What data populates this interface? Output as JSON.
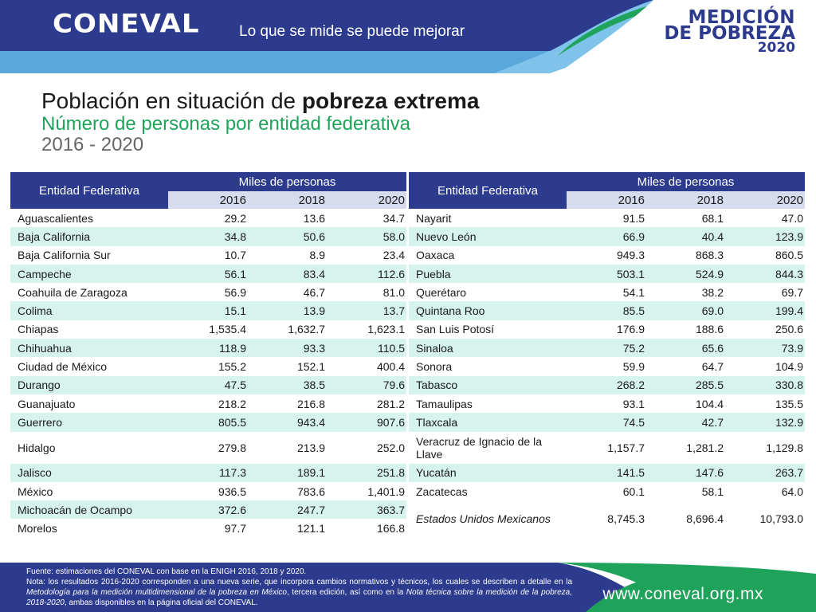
{
  "header": {
    "logo": "CONEVAL",
    "slogan": "Lo que se mide se puede mejorar",
    "badge": {
      "line1": "MEDICIÓN",
      "line2": "DE POBREZA",
      "line3": "2020"
    }
  },
  "title": {
    "prefix": "Población en situación de ",
    "bold": "pobreza extrema",
    "subtitle": "Número de personas por entidad federativa",
    "years": "2016 - 2020"
  },
  "table": {
    "entity_header": "Entidad Federativa",
    "group_header": "Miles de personas",
    "years": [
      "2016",
      "2018",
      "2020"
    ],
    "left_rows": [
      {
        "name": "Aguascalientes",
        "v2016": "29.2",
        "v2018": "13.6",
        "v2020": "34.7"
      },
      {
        "name": "Baja California",
        "v2016": "34.8",
        "v2018": "50.6",
        "v2020": "58.0"
      },
      {
        "name": "Baja California Sur",
        "v2016": "10.7",
        "v2018": "8.9",
        "v2020": "23.4"
      },
      {
        "name": "Campeche",
        "v2016": "56.1",
        "v2018": "83.4",
        "v2020": "112.6"
      },
      {
        "name": "Coahuila de Zaragoza",
        "v2016": "56.9",
        "v2018": "46.7",
        "v2020": "81.0"
      },
      {
        "name": "Colima",
        "v2016": "15.1",
        "v2018": "13.9",
        "v2020": "13.7"
      },
      {
        "name": "Chiapas",
        "v2016": "1,535.4",
        "v2018": "1,632.7",
        "v2020": "1,623.1"
      },
      {
        "name": "Chihuahua",
        "v2016": "118.9",
        "v2018": "93.3",
        "v2020": "110.5"
      },
      {
        "name": "Ciudad de México",
        "v2016": "155.2",
        "v2018": "152.1",
        "v2020": "400.4"
      },
      {
        "name": "Durango",
        "v2016": "47.5",
        "v2018": "38.5",
        "v2020": "79.6"
      },
      {
        "name": "Guanajuato",
        "v2016": "218.2",
        "v2018": "216.8",
        "v2020": "281.2"
      },
      {
        "name": "Guerrero",
        "v2016": "805.5",
        "v2018": "943.4",
        "v2020": "907.6"
      },
      {
        "name": "Hidalgo",
        "v2016": "279.8",
        "v2018": "213.9",
        "v2020": "252.0"
      },
      {
        "name": "Jalisco",
        "v2016": "117.3",
        "v2018": "189.1",
        "v2020": "251.8"
      },
      {
        "name": "México",
        "v2016": "936.5",
        "v2018": "783.6",
        "v2020": "1,401.9"
      },
      {
        "name": "Michoacán de Ocampo",
        "v2016": "372.6",
        "v2018": "247.7",
        "v2020": "363.7"
      },
      {
        "name": "Morelos",
        "v2016": "97.7",
        "v2018": "121.1",
        "v2020": "166.8"
      }
    ],
    "right_rows": [
      {
        "name": "Nayarit",
        "v2016": "91.5",
        "v2018": "68.1",
        "v2020": "47.0"
      },
      {
        "name": "Nuevo León",
        "v2016": "66.9",
        "v2018": "40.4",
        "v2020": "123.9"
      },
      {
        "name": "Oaxaca",
        "v2016": "949.3",
        "v2018": "868.3",
        "v2020": "860.5"
      },
      {
        "name": "Puebla",
        "v2016": "503.1",
        "v2018": "524.9",
        "v2020": "844.3"
      },
      {
        "name": "Querétaro",
        "v2016": "54.1",
        "v2018": "38.2",
        "v2020": "69.7"
      },
      {
        "name": "Quintana Roo",
        "v2016": "85.5",
        "v2018": "69.0",
        "v2020": "199.4"
      },
      {
        "name": "San Luis Potosí",
        "v2016": "176.9",
        "v2018": "188.6",
        "v2020": "250.6"
      },
      {
        "name": "Sinaloa",
        "v2016": "75.2",
        "v2018": "65.6",
        "v2020": "73.9"
      },
      {
        "name": "Sonora",
        "v2016": "59.9",
        "v2018": "64.7",
        "v2020": "104.9"
      },
      {
        "name": "Tabasco",
        "v2016": "268.2",
        "v2018": "285.5",
        "v2020": "330.8"
      },
      {
        "name": "Tamaulipas",
        "v2016": "93.1",
        "v2018": "104.4",
        "v2020": "135.5"
      },
      {
        "name": "Tlaxcala",
        "v2016": "74.5",
        "v2018": "42.7",
        "v2020": "132.9"
      },
      {
        "name": "Veracruz de Ignacio de la Llave",
        "v2016": "1,157.7",
        "v2018": "1,281.2",
        "v2020": "1,129.8"
      },
      {
        "name": "Yucatán",
        "v2016": "141.5",
        "v2018": "147.6",
        "v2020": "263.7"
      },
      {
        "name": "Zacatecas",
        "v2016": "60.1",
        "v2018": "58.1",
        "v2020": "64.0"
      },
      {
        "name": "Estados Unidos Mexicanos",
        "v2016": "8,745.3",
        "v2018": "8,696.4",
        "v2020": "10,793.0"
      }
    ]
  },
  "footer": {
    "source": "Fuente: estimaciones del CONEVAL con base en la ENIGH 2016, 2018 y 2020.",
    "note_a": "Nota: los resultados 2016-2020 corresponden a una nueva serie, que incorpora cambios normativos y técnicos, los cuales se describen a detalle en la ",
    "note_b": "Metodología para la medición multidimensional de la pobreza en México",
    "note_c": ", tercera edición, así como en la ",
    "note_d": "Nota técnica sobre la medición de la pobreza, 2018-2020",
    "note_e": ", ambas disponibles en la página oficial del CONEVAL.",
    "url": "www.coneval.org.mx"
  },
  "colors": {
    "navy": "#2d3b8f",
    "green": "#1fa35a",
    "light_blue": "#5aa7dc",
    "row_alt": "#d6f3ed",
    "year_row": "#d7dbee"
  }
}
